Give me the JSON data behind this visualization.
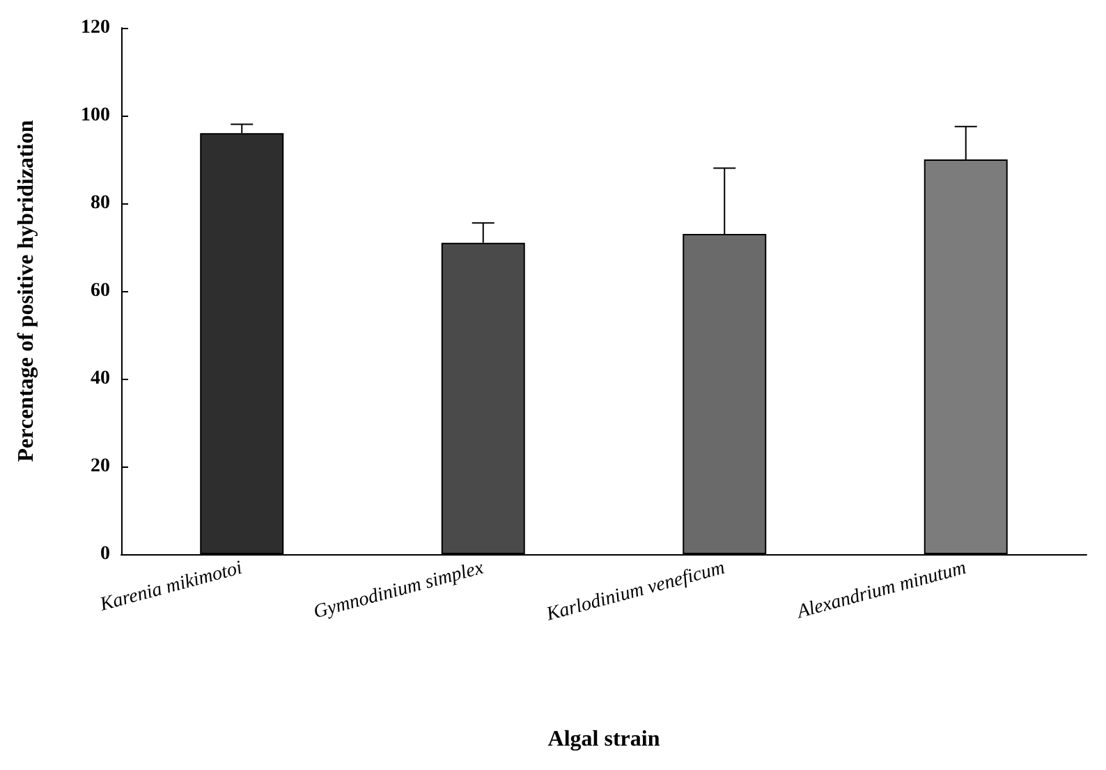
{
  "chart_data": {
    "type": "bar",
    "xlabel": "Algal strain",
    "ylabel": "Percentage of positive hybridization",
    "categories": [
      "Karenia mikimotoi",
      "Gymnodinium simplex",
      "Karlodinium veneficum",
      "Alexandrium minutum"
    ],
    "values": [
      96,
      71,
      73,
      90
    ],
    "colors": [
      "#2e2e2e",
      "#4a4a4a",
      "#6a6a6a",
      "#7c7c7c"
    ],
    "errors": [
      [
        96,
        98
      ],
      [
        71,
        75.5
      ],
      [
        73,
        88
      ],
      [
        90,
        97.5
      ]
    ],
    "ylim": [
      0,
      120
    ],
    "yticks": [
      0,
      20,
      40,
      60,
      80,
      100,
      120
    ],
    "grid": false
  }
}
